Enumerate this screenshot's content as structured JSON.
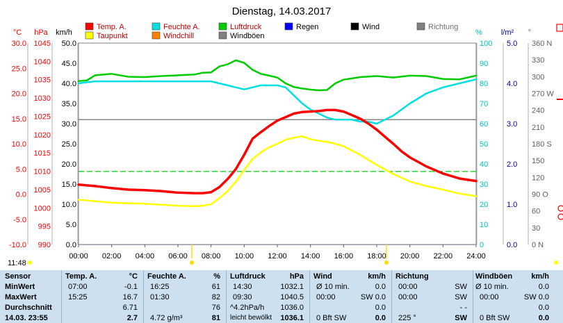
{
  "chart_data": {
    "type": "line",
    "title": "Dienstag, 14.03.2017",
    "x_ticks": [
      "00:00",
      "02:00",
      "04:00",
      "06:00",
      "08:00",
      "10:00",
      "12:00",
      "14:00",
      "16:00",
      "18:00",
      "20:00",
      "22:00",
      "24:00"
    ],
    "time_label": "11:48",
    "legend": [
      {
        "label": "Temp. A.",
        "color": "#ff0000"
      },
      {
        "label": "Feuchte A.",
        "color": "#00e0e0"
      },
      {
        "label": "Luftdruck",
        "color": "#00cc00"
      },
      {
        "label": "Regen",
        "color": "#0000ff"
      },
      {
        "label": "Wind",
        "color": "#000000"
      },
      {
        "label": "Richtung",
        "color": "#808080"
      },
      {
        "label": "Taupunkt",
        "color": "#ffff00"
      },
      {
        "label": "Windchill",
        "color": "#ff8000"
      },
      {
        "label": "Windböen",
        "color": "#808080"
      }
    ],
    "axes": {
      "temp": {
        "unit": "°C",
        "ticks": [
          "30.0",
          "25.0",
          "20.0",
          "15.0",
          "10.0",
          "5.0",
          "0.0",
          "-5.0",
          "-10.0"
        ],
        "range": [
          -10,
          30
        ],
        "color": "#ff0000"
      },
      "pressure": {
        "unit": "hPa",
        "ticks": [
          "1045",
          "1040",
          "1035",
          "1030",
          "1025",
          "1020",
          "1015",
          "1010",
          "1005",
          "1000",
          "995",
          "990"
        ],
        "range": [
          990,
          1045
        ],
        "color": "#ff0000"
      },
      "wind": {
        "unit": "km/h",
        "ticks": [
          "50.0",
          "45.0",
          "40.0",
          "35.0",
          "30.0",
          "25.0",
          "20.0",
          "15.0",
          "10.0",
          "5.0",
          "0.0"
        ],
        "range": [
          0,
          50
        ],
        "color": "#000000"
      },
      "humidity": {
        "unit": "%",
        "ticks": [
          "100",
          "90",
          "80",
          "70",
          "60",
          "50",
          "40",
          "30",
          "20",
          "10",
          "0"
        ],
        "range": [
          0,
          100
        ],
        "color": "#00c0c0"
      },
      "rain": {
        "unit": "l/m²",
        "ticks": [
          "5.0",
          "4.0",
          "3.0",
          "2.0",
          "1.0",
          "0.0"
        ],
        "range": [
          0,
          5
        ],
        "color": "#0000a0"
      },
      "direction": {
        "ticks": [
          "360 N",
          "330",
          "300",
          "270 W",
          "240",
          "210",
          "180 S",
          "150",
          "120",
          "90 O",
          "60",
          "30",
          "0 N"
        ],
        "range": [
          0,
          360
        ],
        "color": "#606060"
      }
    },
    "series": [
      {
        "name": "Temp. A.",
        "axis": "temp",
        "color": "#ff0000",
        "x": [
          0,
          1,
          2,
          3,
          4,
          5,
          6,
          7,
          7.5,
          8,
          8.5,
          9,
          9.5,
          10,
          10.5,
          11,
          11.5,
          12,
          12.5,
          13,
          13.5,
          14,
          14.5,
          15,
          15.5,
          16,
          16.5,
          17,
          17.5,
          18,
          18.5,
          19,
          19.5,
          20,
          21,
          22,
          23,
          24
        ],
        "y": [
          1.9,
          1.6,
          1.2,
          0.9,
          0.8,
          0.6,
          0.3,
          0.2,
          0.2,
          0.4,
          1.4,
          3.0,
          5.0,
          7.8,
          11.0,
          12.3,
          13.5,
          14.6,
          15.3,
          16.0,
          16.3,
          16.4,
          16.5,
          16.7,
          16.7,
          16.4,
          15.7,
          15.0,
          14.0,
          12.8,
          11.4,
          10.0,
          8.5,
          7.3,
          5.5,
          4.1,
          3.1,
          2.6
        ]
      },
      {
        "name": "Taupunkt",
        "axis": "temp",
        "color": "#ffff00",
        "x": [
          0,
          1,
          2,
          3,
          4,
          5,
          6,
          7,
          7.5,
          8,
          8.5,
          9,
          9.5,
          10,
          10.5,
          11,
          11.5,
          12,
          12.5,
          13,
          13.5,
          14,
          14.5,
          15,
          15.5,
          16,
          17,
          18,
          19,
          20,
          21,
          22,
          23,
          24
        ],
        "y": [
          -1.1,
          -1.4,
          -1.7,
          -1.8,
          -1.9,
          -2.1,
          -2.3,
          -2.4,
          -2.3,
          -2.0,
          -0.8,
          0.6,
          2.5,
          4.8,
          7.0,
          8.3,
          9.3,
          10.0,
          10.8,
          11.2,
          11.5,
          10.9,
          10.6,
          10.4,
          10.0,
          9.5,
          7.8,
          5.8,
          4.0,
          2.5,
          1.6,
          0.9,
          0.1,
          -0.4
        ]
      },
      {
        "name": "Feuchte A.",
        "axis": "humidity",
        "color": "#00e0e0",
        "x": [
          0,
          1,
          2,
          3,
          4,
          5,
          6,
          7,
          7.5,
          8,
          8.5,
          9,
          9.5,
          10,
          10.5,
          11,
          11.5,
          12,
          12.5,
          13,
          13.5,
          14,
          14.5,
          15,
          15.5,
          16,
          16.5,
          17,
          17.5,
          18,
          18.5,
          19,
          20,
          21,
          22,
          23,
          24
        ],
        "y": [
          80,
          81,
          81,
          81,
          81,
          81,
          81,
          81,
          81,
          81,
          80,
          79,
          78,
          77,
          78,
          79,
          79,
          79,
          78,
          74,
          70,
          67,
          65,
          63,
          62,
          62,
          62,
          61,
          61,
          60,
          62,
          64,
          70,
          75,
          78,
          80,
          82
        ]
      },
      {
        "name": "Luftdruck",
        "axis": "pressure",
        "color": "#00cc00",
        "x": [
          0,
          0.5,
          1,
          2,
          3,
          4,
          5,
          6,
          7,
          7.5,
          8,
          8.5,
          9,
          9.5,
          10,
          10.5,
          11,
          11.5,
          12,
          12.5,
          13,
          13.5,
          14,
          14.5,
          15,
          15.5,
          16,
          17,
          18,
          19,
          20,
          21,
          22,
          23,
          24
        ],
        "y": [
          1034.6,
          1034.8,
          1036.2,
          1036.6,
          1035.8,
          1035.7,
          1036.0,
          1036.2,
          1036.4,
          1036.9,
          1037.0,
          1038.6,
          1039.2,
          1040.3,
          1039.6,
          1037.7,
          1036.6,
          1036.1,
          1035.6,
          1034.0,
          1033.0,
          1032.6,
          1032.3,
          1032.1,
          1032.2,
          1034.0,
          1035.0,
          1035.7,
          1036.0,
          1035.6,
          1036.1,
          1036.0,
          1035.2,
          1035.1,
          1036.1
        ]
      }
    ],
    "reference_lines": [
      {
        "axis": "temp",
        "value": 14.8,
        "color": "#606060",
        "style": "solid"
      },
      {
        "axis": "temp",
        "value": 4.5,
        "color": "#00cc00",
        "style": "dashed"
      }
    ]
  },
  "stats": {
    "sensor": {
      "header": "Sensor",
      "rows": [
        "MinWert",
        "MaxWert",
        "Durchschnitt",
        "14.03. 23:55"
      ],
      "time": "11:48"
    },
    "temp": {
      "header": "Temp. A.",
      "unit": "°C",
      "c1": [
        "07:00",
        "15:25",
        "",
        ""
      ],
      "c2": [
        "-0.1",
        "16.7",
        "6.71",
        "2.7"
      ]
    },
    "feuchte": {
      "header": "Feuchte A.",
      "unit": "%",
      "c1": [
        "16:25",
        "01:30",
        "",
        "4.72 g/m³"
      ],
      "c2": [
        "61",
        "82",
        "76",
        "81"
      ]
    },
    "luftdruck": {
      "header": "Luftdruck",
      "unit": "hPa",
      "c1": [
        "14:30",
        "09:30",
        "^4.2hPa/h",
        "leicht bewölkt"
      ],
      "c2": [
        "1032.1",
        "1040.5",
        "1036.0",
        "1036.1"
      ]
    },
    "wind": {
      "header": "Wind",
      "unit": "km/h",
      "c1": [
        "Ø 10 min.",
        "00:00",
        "",
        "0 Bft SW"
      ],
      "c2": [
        "0.0",
        "SW 0.0",
        "0.0",
        "0.0"
      ]
    },
    "richtung": {
      "header": "Richtung",
      "unit": "",
      "c1": [
        "00:00",
        "00:00",
        "",
        "225 °"
      ],
      "c2": [
        "SW",
        "SW",
        "- -",
        "SW"
      ]
    },
    "windboeen": {
      "header": "Windböen",
      "unit": "km/h",
      "c1": [
        "Ø 10 min.",
        "00:00",
        "",
        "0 Bft SW"
      ],
      "c2": [
        "0.0",
        "SW 0.0",
        "0.0",
        "0.0"
      ]
    }
  }
}
